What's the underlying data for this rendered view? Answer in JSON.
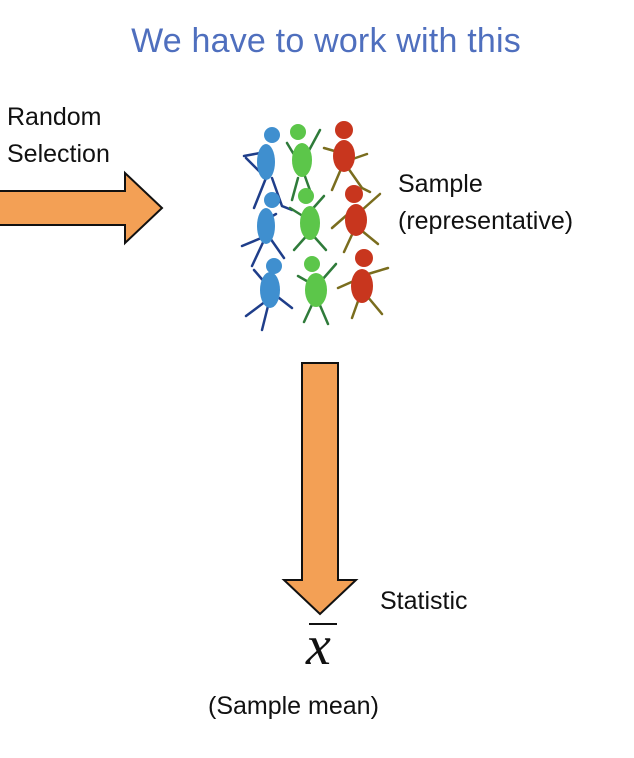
{
  "title": "We have to work with this",
  "random_selection": {
    "line1": "Random",
    "line2": "Selection"
  },
  "sample": {
    "line1": "Sample",
    "line2": "(representative)"
  },
  "statistic": "Statistic",
  "xbar_symbol": "x",
  "sample_mean": "(Sample mean)",
  "colors": {
    "arrow_fill": "#f3a055",
    "arrow_stroke": "#111111",
    "title": "#4f6fbe",
    "figure_blue": "#3f8fcf",
    "figure_green": "#5cc64a",
    "figure_red": "#c8361e"
  },
  "icons": {
    "people": "group-of-people-illustration"
  }
}
